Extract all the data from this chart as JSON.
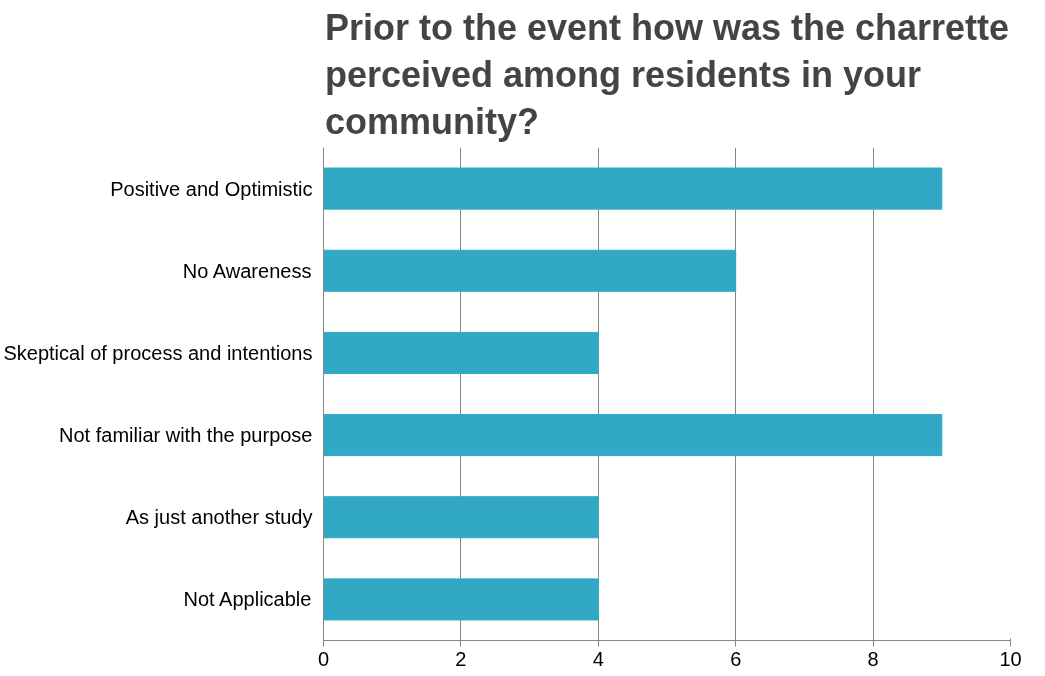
{
  "chart_data": {
    "type": "bar",
    "orientation": "horizontal",
    "title": "Prior to the event how was the charrette perceived among residents in your community?",
    "categories": [
      "Positive and Optimistic",
      "No Awareness",
      "Skeptical of process and intentions",
      "Not familiar with the purpose",
      "As just another study",
      "Not Applicable"
    ],
    "values": [
      9,
      6,
      4,
      9,
      4,
      4
    ],
    "color": "#31a9c4",
    "xlim": [
      0,
      10
    ],
    "xticks": [
      0,
      2,
      4,
      6,
      8,
      10
    ],
    "grid": "x"
  }
}
